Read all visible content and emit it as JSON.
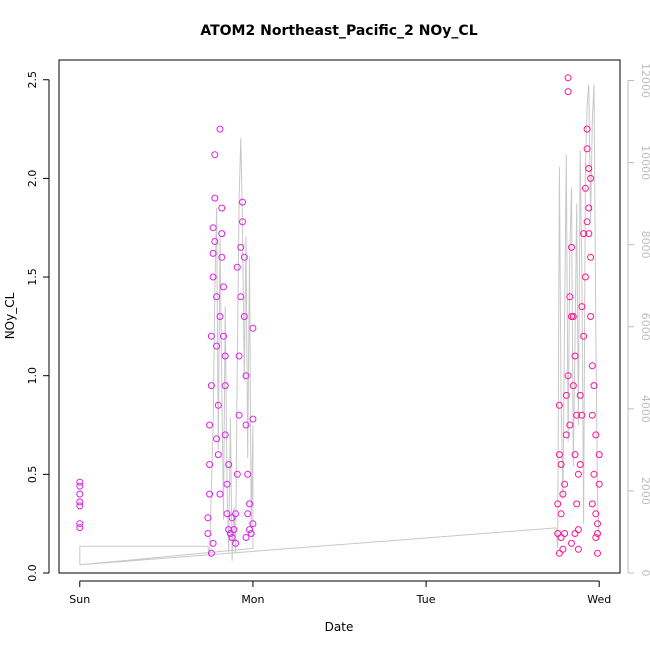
{
  "chart_data": {
    "type": "scatter",
    "title": "ATOM2 Northeast_Pacific_2 NOy_CL",
    "xlabel": "Date",
    "ylabel": "NOy_CL",
    "y2label": "",
    "x_axis_type": "date",
    "x_ticks": [
      {
        "label": "Sun",
        "t": 0
      },
      {
        "label": "Mon",
        "t": 1
      },
      {
        "label": "Tue",
        "t": 2
      },
      {
        "label": "Wed",
        "t": 3
      }
    ],
    "xlim_days_from_sun": [
      -0.12,
      3.12
    ],
    "ylim": [
      0.0,
      2.6
    ],
    "y_ticks": [
      "0.0",
      "0.5",
      "1.0",
      "1.5",
      "2.0",
      "2.5"
    ],
    "y2lim": [
      0,
      12500
    ],
    "y2_ticks": [
      "0",
      "2000",
      "4000",
      "6000",
      "8000",
      "10000",
      "12000"
    ],
    "grid": false,
    "legend": "none",
    "colors": {
      "series_magenta": "#e020e8",
      "series_pink": "#ff1493",
      "altitude_line": "#c8c8c8",
      "axis": "#000000",
      "right_axis": "#bdbdbd"
    },
    "series": [
      {
        "color": "#e020e8",
        "marker": "open-circle",
        "points": [
          [
            0.0,
            0.46
          ],
          [
            0.0,
            0.44
          ],
          [
            0.0,
            0.4
          ],
          [
            0.0,
            0.36
          ],
          [
            0.0,
            0.34
          ],
          [
            0.0,
            0.25
          ],
          [
            0.0,
            0.23
          ],
          [
            0.74,
            0.2
          ],
          [
            0.74,
            0.28
          ],
          [
            0.75,
            0.4
          ],
          [
            0.75,
            0.55
          ],
          [
            0.75,
            0.75
          ],
          [
            0.76,
            0.95
          ],
          [
            0.76,
            1.2
          ],
          [
            0.77,
            1.5
          ],
          [
            0.77,
            1.62
          ],
          [
            0.77,
            1.75
          ],
          [
            0.78,
            1.9
          ],
          [
            0.78,
            2.12
          ],
          [
            0.78,
            1.68
          ],
          [
            0.79,
            1.4
          ],
          [
            0.79,
            1.15
          ],
          [
            0.8,
            0.85
          ],
          [
            0.8,
            0.6
          ],
          [
            0.81,
            0.4
          ],
          [
            0.81,
            1.3
          ],
          [
            0.82,
            1.6
          ],
          [
            0.82,
            1.85
          ],
          [
            0.82,
            1.72
          ],
          [
            0.83,
            1.45
          ],
          [
            0.83,
            1.2
          ],
          [
            0.84,
            0.95
          ],
          [
            0.84,
            0.7
          ],
          [
            0.85,
            0.45
          ],
          [
            0.85,
            0.3
          ],
          [
            0.86,
            0.22
          ],
          [
            0.87,
            0.2
          ],
          [
            0.88,
            0.18
          ],
          [
            0.89,
            0.22
          ],
          [
            0.9,
            0.3
          ],
          [
            0.91,
            0.5
          ],
          [
            0.92,
            0.8
          ],
          [
            0.92,
            1.1
          ],
          [
            0.93,
            1.4
          ],
          [
            0.93,
            1.65
          ],
          [
            0.94,
            1.88
          ],
          [
            0.94,
            1.78
          ],
          [
            0.95,
            1.6
          ],
          [
            0.95,
            1.3
          ],
          [
            0.96,
            1.0
          ],
          [
            0.96,
            0.75
          ],
          [
            0.97,
            0.5
          ],
          [
            0.97,
            0.3
          ],
          [
            0.98,
            0.22
          ],
          [
            0.99,
            0.2
          ],
          [
            1.0,
            0.25
          ],
          [
            1.0,
            0.78
          ],
          [
            1.0,
            1.24
          ],
          [
            0.81,
            2.25
          ],
          [
            0.76,
            0.1
          ],
          [
            0.77,
            0.15
          ],
          [
            0.88,
            0.28
          ],
          [
            0.9,
            0.15
          ],
          [
            0.96,
            0.18
          ],
          [
            0.98,
            0.35
          ],
          [
            0.79,
            0.68
          ],
          [
            0.86,
            0.55
          ],
          [
            0.91,
            1.55
          ],
          [
            0.84,
            1.1
          ]
        ]
      },
      {
        "color": "#ff1493",
        "marker": "open-circle",
        "points": [
          [
            2.82,
            2.51
          ],
          [
            2.82,
            2.44
          ],
          [
            2.76,
            0.2
          ],
          [
            2.76,
            0.35
          ],
          [
            2.77,
            0.6
          ],
          [
            2.77,
            0.85
          ],
          [
            2.78,
            0.55
          ],
          [
            2.78,
            0.3
          ],
          [
            2.79,
            0.12
          ],
          [
            2.8,
            0.2
          ],
          [
            2.8,
            0.45
          ],
          [
            2.81,
            0.7
          ],
          [
            2.82,
            1.0
          ],
          [
            2.83,
            1.4
          ],
          [
            2.84,
            1.65
          ],
          [
            2.85,
            1.3
          ],
          [
            2.85,
            0.95
          ],
          [
            2.86,
            0.6
          ],
          [
            2.87,
            0.35
          ],
          [
            2.88,
            0.22
          ],
          [
            2.88,
            0.5
          ],
          [
            2.89,
            0.9
          ],
          [
            2.9,
            1.35
          ],
          [
            2.91,
            1.72
          ],
          [
            2.92,
            1.95
          ],
          [
            2.93,
            2.15
          ],
          [
            2.93,
            2.25
          ],
          [
            2.94,
            2.05
          ],
          [
            2.94,
            1.85
          ],
          [
            2.95,
            1.6
          ],
          [
            2.95,
            1.3
          ],
          [
            2.96,
            1.05
          ],
          [
            2.96,
            0.8
          ],
          [
            2.97,
            0.5
          ],
          [
            2.98,
            0.3
          ],
          [
            2.98,
            0.18
          ],
          [
            2.99,
            0.1
          ],
          [
            2.99,
            0.25
          ],
          [
            3.0,
            0.45
          ],
          [
            3.0,
            0.6
          ],
          [
            2.92,
            1.5
          ],
          [
            2.91,
            1.2
          ],
          [
            2.9,
            0.8
          ],
          [
            2.89,
            0.55
          ],
          [
            2.87,
            0.8
          ],
          [
            2.86,
            1.1
          ],
          [
            2.84,
            1.3
          ],
          [
            2.83,
            0.75
          ],
          [
            2.81,
            0.9
          ],
          [
            2.79,
            0.4
          ],
          [
            2.78,
            0.18
          ],
          [
            2.77,
            0.1
          ],
          [
            2.94,
            1.72
          ],
          [
            2.95,
            2.0
          ],
          [
            2.93,
            1.78
          ],
          [
            2.97,
            0.95
          ],
          [
            2.98,
            0.7
          ],
          [
            2.96,
            0.35
          ],
          [
            2.99,
            0.2
          ],
          [
            2.86,
            0.2
          ],
          [
            2.84,
            0.15
          ],
          [
            2.88,
            0.12
          ]
        ]
      }
    ],
    "altitude_line": {
      "axis": "right",
      "points": [
        [
          0.0,
          200
        ],
        [
          0.0,
          650
        ],
        [
          0.74,
          650
        ],
        [
          0.75,
          400
        ],
        [
          0.76,
          2100
        ],
        [
          0.77,
          3500
        ],
        [
          0.78,
          6800
        ],
        [
          0.79,
          8900
        ],
        [
          0.8,
          3000
        ],
        [
          0.81,
          8200
        ],
        [
          0.82,
          4500
        ],
        [
          0.83,
          1300
        ],
        [
          0.84,
          6500
        ],
        [
          0.85,
          2200
        ],
        [
          0.86,
          500
        ],
        [
          0.87,
          3800
        ],
        [
          0.88,
          300
        ],
        [
          0.89,
          1600
        ],
        [
          0.9,
          500
        ],
        [
          0.91,
          5200
        ],
        [
          0.92,
          9100
        ],
        [
          0.93,
          10600
        ],
        [
          0.94,
          8500
        ],
        [
          0.95,
          4700
        ],
        [
          0.96,
          8200
        ],
        [
          0.97,
          2800
        ],
        [
          0.98,
          7700
        ],
        [
          0.99,
          1100
        ],
        [
          1.0,
          3600
        ],
        [
          1.0,
          600
        ],
        [
          0.0,
          200
        ],
        [
          2.75,
          1100
        ],
        [
          2.76,
          600
        ],
        [
          2.77,
          9900
        ],
        [
          2.78,
          4200
        ],
        [
          2.79,
          1800
        ],
        [
          2.8,
          6200
        ],
        [
          2.81,
          10200
        ],
        [
          2.82,
          3200
        ],
        [
          2.83,
          7800
        ],
        [
          2.84,
          9400
        ],
        [
          2.85,
          2600
        ],
        [
          2.86,
          5600
        ],
        [
          2.87,
          9000
        ],
        [
          2.88,
          3600
        ],
        [
          2.89,
          10300
        ],
        [
          2.9,
          7200
        ],
        [
          2.91,
          1200
        ],
        [
          2.92,
          9800
        ],
        [
          2.93,
          11400
        ],
        [
          2.94,
          11900
        ],
        [
          2.95,
          8600
        ],
        [
          2.96,
          11000
        ],
        [
          2.97,
          11900
        ],
        [
          2.98,
          6000
        ],
        [
          2.99,
          1800
        ],
        [
          3.0,
          800
        ]
      ]
    }
  }
}
